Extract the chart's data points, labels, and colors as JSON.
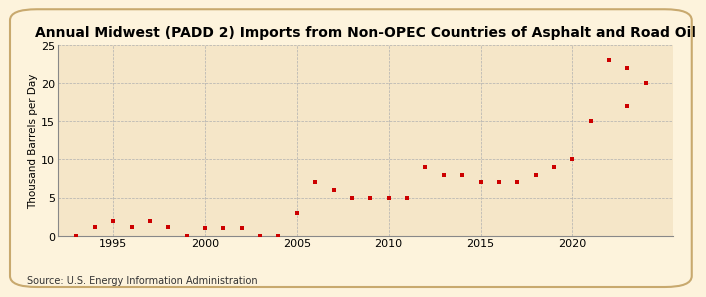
{
  "title": "Annual Midwest (PADD 2) Imports from Non-OPEC Countries of Asphalt and Road Oil",
  "ylabel": "Thousand Barrels per Day",
  "source": "Source: U.S. Energy Information Administration",
  "background_color": "#f5e6c8",
  "plot_bg_color": "#f5e6c8",
  "marker_color": "#cc0000",
  "years": [
    1993,
    1994,
    1995,
    1996,
    1997,
    1998,
    1999,
    2000,
    2001,
    2002,
    2003,
    2004,
    2005,
    2006,
    2007,
    2008,
    2009,
    2010,
    2011,
    2012,
    2013,
    2014,
    2015,
    2016,
    2017,
    2018,
    2019,
    2020,
    2021,
    2022,
    2023,
    2024
  ],
  "values": [
    0.0,
    1.1,
    2.0,
    1.1,
    2.0,
    1.1,
    0.0,
    1.0,
    1.0,
    1.0,
    0.0,
    0.0,
    3.0,
    7.0,
    6.0,
    5.0,
    5.0,
    5.0,
    5.0,
    9.0,
    8.0,
    8.0,
    7.0,
    7.0,
    7.0,
    8.0,
    9.0,
    10.0,
    15.0,
    23.0,
    22.0,
    20.0
  ],
  "xlim": [
    1992.0,
    2025.5
  ],
  "ylim": [
    0,
    25
  ],
  "yticks": [
    0,
    5,
    10,
    15,
    20,
    25
  ],
  "xticks": [
    1995,
    2000,
    2005,
    2010,
    2015,
    2020
  ],
  "grid_color": "#b0b0b0",
  "grid_linestyle": "--",
  "grid_linewidth": 0.5,
  "spine_color": "#888888",
  "title_fontsize": 10,
  "ylabel_fontsize": 7.5,
  "tick_fontsize": 8,
  "source_fontsize": 7,
  "marker_size": 12,
  "outer_bg": "#fdf3dc",
  "border_color": "#c8a96e"
}
